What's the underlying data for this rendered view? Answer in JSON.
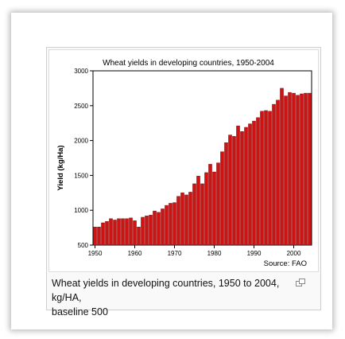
{
  "caption": {
    "line1": "Wheat yields in developing countries, 1950 to 2004, kg/HA,",
    "line2": "baseline 500",
    "icon": "enlarge-icon"
  },
  "chart_data": {
    "type": "bar",
    "title": "Wheat yields in developing countries, 1950-2004",
    "ylabel": "Yield (kg/Ha)",
    "xlabel": "",
    "source_note": "Source:  FAO",
    "ylim": [
      500,
      3000
    ],
    "yticks": [
      500,
      1000,
      1500,
      2000,
      2500,
      3000
    ],
    "xticks": [
      1950,
      1960,
      1970,
      1980,
      1990,
      2000
    ],
    "bar_color": "#cc1414",
    "grid": false,
    "x": [
      1950,
      1951,
      1952,
      1953,
      1954,
      1955,
      1956,
      1957,
      1958,
      1959,
      1960,
      1961,
      1962,
      1963,
      1964,
      1965,
      1966,
      1967,
      1968,
      1969,
      1970,
      1971,
      1972,
      1973,
      1974,
      1975,
      1976,
      1977,
      1978,
      1979,
      1980,
      1981,
      1982,
      1983,
      1984,
      1985,
      1986,
      1987,
      1988,
      1989,
      1990,
      1991,
      1992,
      1993,
      1994,
      1995,
      1996,
      1997,
      1998,
      1999,
      2000,
      2001,
      2002,
      2003,
      2004
    ],
    "values": [
      760,
      760,
      820,
      840,
      880,
      860,
      880,
      880,
      880,
      890,
      850,
      760,
      900,
      920,
      930,
      990,
      970,
      1020,
      1070,
      1100,
      1110,
      1200,
      1250,
      1220,
      1260,
      1380,
      1490,
      1380,
      1540,
      1660,
      1550,
      1680,
      1840,
      1970,
      2080,
      2060,
      2210,
      2130,
      2190,
      2240,
      2280,
      2330,
      2420,
      2430,
      2420,
      2520,
      2580,
      2750,
      2640,
      2690,
      2680,
      2650,
      2670,
      2680,
      2680
    ]
  }
}
